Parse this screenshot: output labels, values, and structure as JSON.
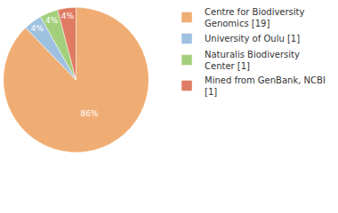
{
  "chart_data": {
    "type": "pie",
    "categories": [
      "Centre for Biodiversity Genomics [19]",
      "University of Oulu [1]",
      "Naturalis Biodiversity Center [1]",
      "Mined from GenBank, NCBI [1]"
    ],
    "values": [
      86,
      4,
      4,
      4
    ],
    "value_labels": [
      "86%",
      "4%",
      "4%",
      "4%"
    ],
    "colors": [
      "#f0ad73",
      "#9fc1e0",
      "#a4cf7c",
      "#e07b63"
    ],
    "data_labels": true,
    "legend": "top-right"
  }
}
